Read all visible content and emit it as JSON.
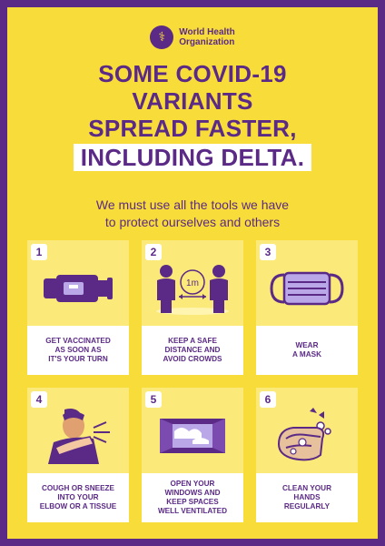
{
  "header": {
    "org_name_line1": "World Health",
    "org_name_line2": "Organization"
  },
  "title": {
    "line1": "SOME COVID-19",
    "line2": "VARIANTS",
    "line3": "SPREAD FASTER,",
    "line4": "INCLUDING DELTA."
  },
  "subtitle": {
    "line1": "We must use all the tools we have",
    "line2": "to protect ourselves and others"
  },
  "steps": [
    {
      "number": "1",
      "label": "GET VACCINATED\nAS SOON AS\nIT'S YOUR TURN",
      "icon": "vaccine-vial-icon"
    },
    {
      "number": "2",
      "label": "KEEP A SAFE\nDISTANCE AND\nAVOID CROWDS",
      "icon": "distance-people-icon"
    },
    {
      "number": "3",
      "label": "WEAR\nA MASK",
      "icon": "face-mask-icon"
    },
    {
      "number": "4",
      "label": "COUGH OR SNEEZE\nINTO YOUR\nELBOW OR A TISSUE",
      "icon": "cough-elbow-icon"
    },
    {
      "number": "5",
      "label": "OPEN YOUR\nWINDOWS AND\nKEEP SPACES\nWELL VENTILATED",
      "icon": "open-window-icon"
    },
    {
      "number": "6",
      "label": "CLEAN YOUR\nHANDS\nREGULARLY",
      "icon": "hand-washing-icon"
    }
  ],
  "distance_marker": "1m",
  "colors": {
    "purple": "#5b2a86",
    "yellow": "#f8dd3a",
    "card_yellow": "#fbe97a",
    "white": "#ffffff"
  }
}
